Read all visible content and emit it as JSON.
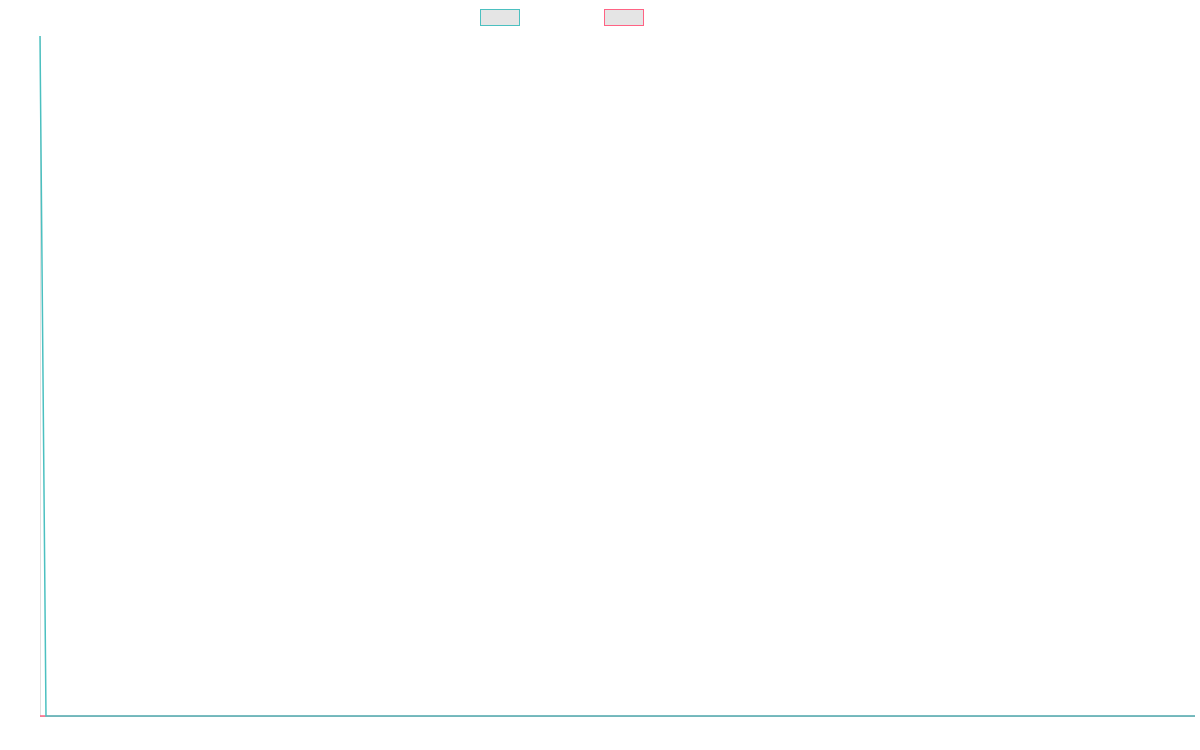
{
  "chart_data": {
    "type": "line",
    "title": "",
    "xlabel": "",
    "ylabel": "",
    "xlim": [
      0,
      193
    ],
    "ylim": [
      0,
      100
    ],
    "grid": false,
    "legend": "top-center",
    "series": [
      {
        "color": "#4bc0c0",
        "x": [
          0,
          1,
          193
        ],
        "values": [
          100,
          0,
          0
        ]
      },
      {
        "color": "#ff6384",
        "x": [
          0,
          1,
          193
        ],
        "values": [
          0,
          0,
          0
        ]
      }
    ]
  }
}
